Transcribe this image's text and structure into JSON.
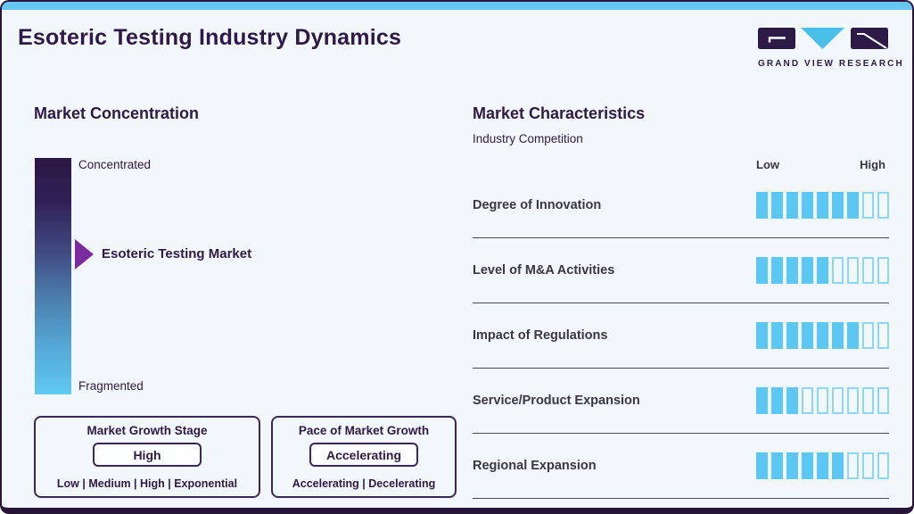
{
  "header": {
    "title": "Esoteric Testing Industry Dynamics",
    "logo_brand": "GRAND VIEW RESEARCH"
  },
  "colors": {
    "accent_blue": "#5bc8f3",
    "bar_outline": "#8cd7f5",
    "topbar_blue": "#66c6ef",
    "brand_purple": "#2e1a47",
    "arrow_purple": "#7c2b9f",
    "background": "#f2f7fb"
  },
  "market_concentration": {
    "title": "Market Concentration",
    "scale_top": "Concentrated",
    "scale_bottom": "Fragmented",
    "marker_label": "Esoteric Testing Market"
  },
  "growth_stage": {
    "title": "Market Growth Stage",
    "selected": "High",
    "options_line": "Low | Medium | High | Exponential"
  },
  "growth_pace": {
    "title": "Pace of Market Growth",
    "selected": "Accelerating",
    "options_line": "Accelerating | Decelerating"
  },
  "market_characteristics": {
    "title": "Market Characteristics",
    "subtitle": "Industry Competition",
    "scale_low": "Low",
    "scale_high": "High",
    "bar_total": 9,
    "rows": [
      {
        "label": "Degree of Innovation",
        "filled": 7
      },
      {
        "label": "Level of M&A Activities",
        "filled": 5
      },
      {
        "label": "Impact of Regulations",
        "filled": 7
      },
      {
        "label": "Service/Product Expansion",
        "filled": 3
      },
      {
        "label": "Regional Expansion",
        "filled": 6
      }
    ]
  },
  "chart_data": {
    "type": "bar",
    "title": "Market Characteristics — Industry Competition",
    "categories": [
      "Degree of Innovation",
      "Level of M&A Activities",
      "Impact of Regulations",
      "Service/Product Expansion",
      "Regional Expansion"
    ],
    "values": [
      7,
      5,
      7,
      3,
      6
    ],
    "value_max": 9,
    "scale_labels": [
      "Low",
      "High"
    ],
    "legend_position": "none",
    "grid": false
  }
}
